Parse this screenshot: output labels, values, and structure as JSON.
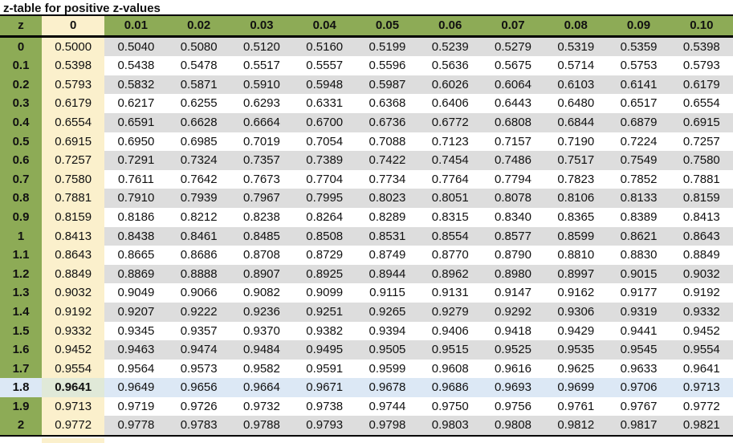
{
  "title": "z-table for positive z-values",
  "colors": {
    "header_green": "#8DAB56",
    "cream": "#FBF0CC",
    "stripe_gray": "#DDDDDD",
    "stripe_white": "#FFFFFF",
    "highlight_blue": "#DCE8F5",
    "highlight_sage": "#E0E9D8",
    "border": "#000000",
    "text": "#111111"
  },
  "chart_data": {
    "type": "table",
    "title": "z-table for positive z-values",
    "columns": [
      "z",
      "0",
      "0.01",
      "0.02",
      "0.03",
      "0.04",
      "0.05",
      "0.06",
      "0.07",
      "0.08",
      "0.09",
      "0.10"
    ],
    "highlighted_row_z": "1.8",
    "bold_cell": {
      "row_z": "1.8",
      "column": "0",
      "value": "0.9641"
    },
    "rows": [
      {
        "z": "0",
        "values": [
          "0.5000",
          "0.5040",
          "0.5080",
          "0.5120",
          "0.5160",
          "0.5199",
          "0.5239",
          "0.5279",
          "0.5319",
          "0.5359",
          "0.5398"
        ]
      },
      {
        "z": "0.1",
        "values": [
          "0.5398",
          "0.5438",
          "0.5478",
          "0.5517",
          "0.5557",
          "0.5596",
          "0.5636",
          "0.5675",
          "0.5714",
          "0.5753",
          "0.5793"
        ]
      },
      {
        "z": "0.2",
        "values": [
          "0.5793",
          "0.5832",
          "0.5871",
          "0.5910",
          "0.5948",
          "0.5987",
          "0.6026",
          "0.6064",
          "0.6103",
          "0.6141",
          "0.6179"
        ]
      },
      {
        "z": "0.3",
        "values": [
          "0.6179",
          "0.6217",
          "0.6255",
          "0.6293",
          "0.6331",
          "0.6368",
          "0.6406",
          "0.6443",
          "0.6480",
          "0.6517",
          "0.6554"
        ]
      },
      {
        "z": "0.4",
        "values": [
          "0.6554",
          "0.6591",
          "0.6628",
          "0.6664",
          "0.6700",
          "0.6736",
          "0.6772",
          "0.6808",
          "0.6844",
          "0.6879",
          "0.6915"
        ]
      },
      {
        "z": "0.5",
        "values": [
          "0.6915",
          "0.6950",
          "0.6985",
          "0.7019",
          "0.7054",
          "0.7088",
          "0.7123",
          "0.7157",
          "0.7190",
          "0.7224",
          "0.7257"
        ]
      },
      {
        "z": "0.6",
        "values": [
          "0.7257",
          "0.7291",
          "0.7324",
          "0.7357",
          "0.7389",
          "0.7422",
          "0.7454",
          "0.7486",
          "0.7517",
          "0.7549",
          "0.7580"
        ]
      },
      {
        "z": "0.7",
        "values": [
          "0.7580",
          "0.7611",
          "0.7642",
          "0.7673",
          "0.7704",
          "0.7734",
          "0.7764",
          "0.7794",
          "0.7823",
          "0.7852",
          "0.7881"
        ]
      },
      {
        "z": "0.8",
        "values": [
          "0.7881",
          "0.7910",
          "0.7939",
          "0.7967",
          "0.7995",
          "0.8023",
          "0.8051",
          "0.8078",
          "0.8106",
          "0.8133",
          "0.8159"
        ]
      },
      {
        "z": "0.9",
        "values": [
          "0.8159",
          "0.8186",
          "0.8212",
          "0.8238",
          "0.8264",
          "0.8289",
          "0.8315",
          "0.8340",
          "0.8365",
          "0.8389",
          "0.8413"
        ]
      },
      {
        "z": "1",
        "values": [
          "0.8413",
          "0.8438",
          "0.8461",
          "0.8485",
          "0.8508",
          "0.8531",
          "0.8554",
          "0.8577",
          "0.8599",
          "0.8621",
          "0.8643"
        ]
      },
      {
        "z": "1.1",
        "values": [
          "0.8643",
          "0.8665",
          "0.8686",
          "0.8708",
          "0.8729",
          "0.8749",
          "0.8770",
          "0.8790",
          "0.8810",
          "0.8830",
          "0.8849"
        ]
      },
      {
        "z": "1.2",
        "values": [
          "0.8849",
          "0.8869",
          "0.8888",
          "0.8907",
          "0.8925",
          "0.8944",
          "0.8962",
          "0.8980",
          "0.8997",
          "0.9015",
          "0.9032"
        ]
      },
      {
        "z": "1.3",
        "values": [
          "0.9032",
          "0.9049",
          "0.9066",
          "0.9082",
          "0.9099",
          "0.9115",
          "0.9131",
          "0.9147",
          "0.9162",
          "0.9177",
          "0.9192"
        ]
      },
      {
        "z": "1.4",
        "values": [
          "0.9192",
          "0.9207",
          "0.9222",
          "0.9236",
          "0.9251",
          "0.9265",
          "0.9279",
          "0.9292",
          "0.9306",
          "0.9319",
          "0.9332"
        ]
      },
      {
        "z": "1.5",
        "values": [
          "0.9332",
          "0.9345",
          "0.9357",
          "0.9370",
          "0.9382",
          "0.9394",
          "0.9406",
          "0.9418",
          "0.9429",
          "0.9441",
          "0.9452"
        ]
      },
      {
        "z": "1.6",
        "values": [
          "0.9452",
          "0.9463",
          "0.9474",
          "0.9484",
          "0.9495",
          "0.9505",
          "0.9515",
          "0.9525",
          "0.9535",
          "0.9545",
          "0.9554"
        ]
      },
      {
        "z": "1.7",
        "values": [
          "0.9554",
          "0.9564",
          "0.9573",
          "0.9582",
          "0.9591",
          "0.9599",
          "0.9608",
          "0.9616",
          "0.9625",
          "0.9633",
          "0.9641"
        ]
      },
      {
        "z": "1.8",
        "values": [
          "0.9641",
          "0.9649",
          "0.9656",
          "0.9664",
          "0.9671",
          "0.9678",
          "0.9686",
          "0.9693",
          "0.9699",
          "0.9706",
          "0.9713"
        ]
      },
      {
        "z": "1.9",
        "values": [
          "0.9713",
          "0.9719",
          "0.9726",
          "0.9732",
          "0.9738",
          "0.9744",
          "0.9750",
          "0.9756",
          "0.9761",
          "0.9767",
          "0.9772"
        ]
      },
      {
        "z": "2",
        "values": [
          "0.9772",
          "0.9778",
          "0.9783",
          "0.9788",
          "0.9793",
          "0.9798",
          "0.9803",
          "0.9808",
          "0.9812",
          "0.9817",
          "0.9821"
        ]
      }
    ]
  }
}
